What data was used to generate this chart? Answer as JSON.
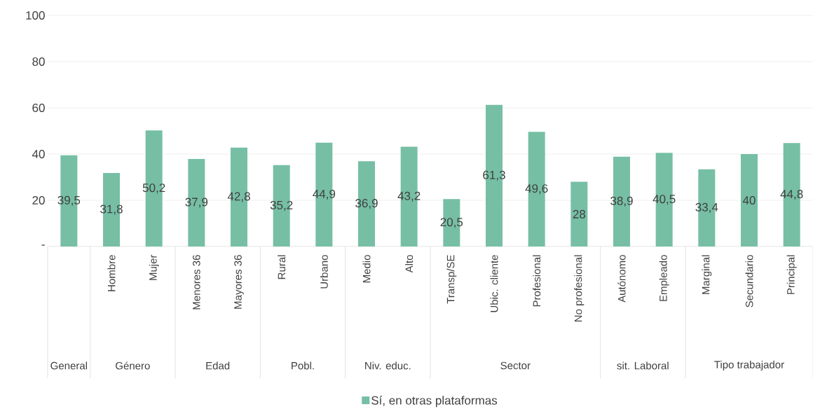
{
  "chart_data": {
    "type": "bar",
    "categories": [
      null,
      "Hombre",
      "Mujer",
      "Menores 36",
      "Mayores 36",
      "Rural",
      "Urbano",
      "Medio",
      "Alto",
      "Transp/SE",
      "Ubic. cliente",
      "Profesional",
      "No profesional",
      "Autónomo",
      "Empleado",
      "Marginal",
      "Secundario",
      "Principal"
    ],
    "series": [
      {
        "name": "Sí, en otras plataformas",
        "color": "#76bfa5",
        "values": [
          39.5,
          31.8,
          50.2,
          37.9,
          42.8,
          35.2,
          44.9,
          36.9,
          43.2,
          20.5,
          61.3,
          49.6,
          28,
          38.9,
          40.5,
          33.4,
          40,
          44.8
        ]
      }
    ],
    "value_labels": [
      "39,5",
      "31,8",
      "50,2",
      "37,9",
      "42,8",
      "35,2",
      "44,9",
      "36,9",
      "43,2",
      "20,5",
      "61,3",
      "49,6",
      "28",
      "38,9",
      "40,5",
      "33,4",
      "40",
      "44,8"
    ],
    "annotations": [
      "General",
      "Género",
      "Edad",
      "Pobl.",
      "Niv. educ.",
      "Sector",
      "sit. Laboral",
      "Tipo trabajador"
    ],
    "ylim": [
      0,
      100
    ],
    "yticks": [
      {
        "value": 0,
        "label": "-"
      },
      20,
      40,
      60,
      80,
      100
    ],
    "grid": "y",
    "legend": "bottom"
  }
}
